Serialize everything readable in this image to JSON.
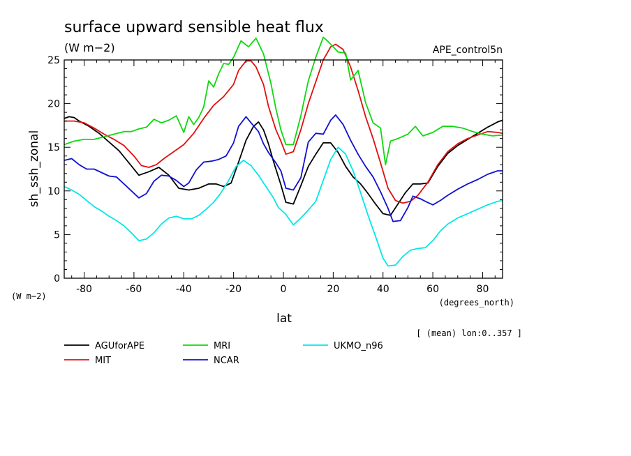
{
  "chart_data": {
    "type": "line",
    "title": "surface upward sensible heat flux",
    "subtitle": "(W m−2)",
    "experiment": "APE_control5n",
    "xlabel": "lat",
    "x_units": "(degrees_north)",
    "ylabel": "sh_ssh_zonal",
    "y_units": "(W m−2)",
    "note": "[ (mean) lon:0..357 ]",
    "xlim": [
      -88,
      88
    ],
    "ylim": [
      0,
      25
    ],
    "x_ticks": [
      "-80",
      "-60",
      "-40",
      "-20",
      "0",
      "20",
      "40",
      "60",
      "80"
    ],
    "y_ticks": [
      "0",
      "5",
      "10",
      "15",
      "20",
      "25"
    ],
    "grid": false,
    "legend_position": "bottom",
    "series": [
      {
        "name": "AGUforAPE",
        "color": "#000000",
        "points": [
          [
            -88,
            18.3
          ],
          [
            -86,
            18.5
          ],
          [
            -84,
            18.4
          ],
          [
            -82,
            18
          ],
          [
            -78,
            17.4
          ],
          [
            -74,
            16.6
          ],
          [
            -70,
            15.6
          ],
          [
            -66,
            14.6
          ],
          [
            -62,
            13.2
          ],
          [
            -58,
            11.8
          ],
          [
            -54,
            12.2
          ],
          [
            -50,
            12.7
          ],
          [
            -46,
            11.8
          ],
          [
            -42,
            10.3
          ],
          [
            -38,
            10.1
          ],
          [
            -34,
            10.3
          ],
          [
            -30,
            10.8
          ],
          [
            -27,
            10.8
          ],
          [
            -24,
            10.5
          ],
          [
            -21,
            10.9
          ],
          [
            -18,
            13.3
          ],
          [
            -15,
            15.8
          ],
          [
            -12,
            17.4
          ],
          [
            -10,
            17.9
          ],
          [
            -8,
            17
          ],
          [
            -6,
            15.4
          ],
          [
            -4,
            13.4
          ],
          [
            -1,
            10.7
          ],
          [
            1,
            8.7
          ],
          [
            4,
            8.5
          ],
          [
            7,
            10.6
          ],
          [
            10,
            12.8
          ],
          [
            13,
            14.2
          ],
          [
            16,
            15.5
          ],
          [
            19,
            15.5
          ],
          [
            22,
            14.4
          ],
          [
            25,
            12.8
          ],
          [
            28,
            11.6
          ],
          [
            31,
            10.8
          ],
          [
            34,
            9.7
          ],
          [
            37,
            8.5
          ],
          [
            40,
            7.4
          ],
          [
            43,
            7.2
          ],
          [
            46,
            8.5
          ],
          [
            49,
            9.8
          ],
          [
            52,
            10.8
          ],
          [
            55,
            10.8
          ],
          [
            58,
            10.9
          ],
          [
            62,
            12.8
          ],
          [
            66,
            14.3
          ],
          [
            70,
            15.2
          ],
          [
            74,
            15.9
          ],
          [
            78,
            16.6
          ],
          [
            82,
            17.3
          ],
          [
            86,
            17.9
          ],
          [
            88,
            18.1
          ]
        ]
      },
      {
        "name": "MIT",
        "color": "#e01010",
        "points": [
          [
            -88,
            18
          ],
          [
            -84,
            18
          ],
          [
            -80,
            17.8
          ],
          [
            -76,
            17.2
          ],
          [
            -72,
            16.5
          ],
          [
            -68,
            15.9
          ],
          [
            -64,
            15.2
          ],
          [
            -60,
            14
          ],
          [
            -57,
            12.9
          ],
          [
            -54,
            12.7
          ],
          [
            -51,
            13
          ],
          [
            -48,
            13.7
          ],
          [
            -44,
            14.5
          ],
          [
            -40,
            15.3
          ],
          [
            -36,
            16.6
          ],
          [
            -32,
            18.3
          ],
          [
            -28,
            19.8
          ],
          [
            -24,
            20.8
          ],
          [
            -20,
            22.2
          ],
          [
            -18,
            23.8
          ],
          [
            -15,
            24.9
          ],
          [
            -13,
            24.9
          ],
          [
            -11,
            24.2
          ],
          [
            -8,
            22.2
          ],
          [
            -6,
            19.7
          ],
          [
            -3,
            17
          ],
          [
            -1,
            15.7
          ],
          [
            1,
            14.2
          ],
          [
            4,
            14.5
          ],
          [
            7,
            17
          ],
          [
            10,
            20
          ],
          [
            13,
            22.5
          ],
          [
            16,
            25
          ],
          [
            19,
            26.5
          ],
          [
            21,
            26.8
          ],
          [
            24,
            26.2
          ],
          [
            27,
            24.2
          ],
          [
            30,
            21.5
          ],
          [
            33,
            18.5
          ],
          [
            36,
            16
          ],
          [
            39,
            13.2
          ],
          [
            42,
            10.3
          ],
          [
            45,
            8.9
          ],
          [
            48,
            8.6
          ],
          [
            51,
            8.8
          ],
          [
            54,
            9.5
          ],
          [
            58,
            11
          ],
          [
            62,
            13
          ],
          [
            66,
            14.5
          ],
          [
            70,
            15.4
          ],
          [
            74,
            16
          ],
          [
            78,
            16.4
          ],
          [
            82,
            16.8
          ],
          [
            86,
            16.7
          ],
          [
            88,
            16.6
          ]
        ]
      },
      {
        "name": "MRI",
        "color": "#10d810",
        "points": [
          [
            -88,
            15.3
          ],
          [
            -84,
            15.7
          ],
          [
            -80,
            15.9
          ],
          [
            -76,
            15.9
          ],
          [
            -72,
            16.2
          ],
          [
            -68,
            16.5
          ],
          [
            -64,
            16.8
          ],
          [
            -61,
            16.8
          ],
          [
            -58,
            17.1
          ],
          [
            -55,
            17.3
          ],
          [
            -52,
            18.2
          ],
          [
            -49,
            17.8
          ],
          [
            -46,
            18.1
          ],
          [
            -43,
            18.6
          ],
          [
            -40,
            16.7
          ],
          [
            -38,
            18.5
          ],
          [
            -36,
            17.6
          ],
          [
            -34,
            18.4
          ],
          [
            -32,
            19.6
          ],
          [
            -30,
            22.6
          ],
          [
            -28,
            21.9
          ],
          [
            -26,
            23.4
          ],
          [
            -24,
            24.6
          ],
          [
            -22,
            24.5
          ],
          [
            -20,
            25.3
          ],
          [
            -17,
            27.2
          ],
          [
            -14,
            26.5
          ],
          [
            -11,
            27.5
          ],
          [
            -8,
            25.7
          ],
          [
            -5,
            22.3
          ],
          [
            -3,
            19.4
          ],
          [
            -1,
            17
          ],
          [
            1,
            15.3
          ],
          [
            4,
            15.3
          ],
          [
            7,
            18.6
          ],
          [
            10,
            22.6
          ],
          [
            13,
            25.3
          ],
          [
            16,
            27.6
          ],
          [
            18,
            27.1
          ],
          [
            20,
            26.5
          ],
          [
            22,
            25.9
          ],
          [
            25,
            25.8
          ],
          [
            27,
            22.7
          ],
          [
            30,
            23.8
          ],
          [
            33,
            20.1
          ],
          [
            36,
            17.8
          ],
          [
            39,
            17.2
          ],
          [
            41,
            13.0
          ],
          [
            43,
            15.7
          ],
          [
            46,
            16
          ],
          [
            50,
            16.5
          ],
          [
            53,
            17.4
          ],
          [
            56,
            16.3
          ],
          [
            60,
            16.7
          ],
          [
            64,
            17.4
          ],
          [
            68,
            17.4
          ],
          [
            72,
            17.2
          ],
          [
            76,
            16.8
          ],
          [
            80,
            16.5
          ],
          [
            84,
            16.3
          ],
          [
            88,
            16.4
          ]
        ]
      },
      {
        "name": "NCAR",
        "color": "#1010d0",
        "points": [
          [
            -88,
            13.5
          ],
          [
            -85,
            13.7
          ],
          [
            -82,
            13
          ],
          [
            -79,
            12.5
          ],
          [
            -76,
            12.5
          ],
          [
            -73,
            12.1
          ],
          [
            -70,
            11.7
          ],
          [
            -67,
            11.6
          ],
          [
            -64,
            10.8
          ],
          [
            -61,
            10
          ],
          [
            -58,
            9.2
          ],
          [
            -55,
            9.7
          ],
          [
            -52,
            11.1
          ],
          [
            -49,
            11.8
          ],
          [
            -46,
            11.7
          ],
          [
            -43,
            11.2
          ],
          [
            -40,
            10.5
          ],
          [
            -38,
            10.9
          ],
          [
            -35,
            12.4
          ],
          [
            -32,
            13.3
          ],
          [
            -29,
            13.4
          ],
          [
            -26,
            13.6
          ],
          [
            -23,
            14
          ],
          [
            -20,
            15.5
          ],
          [
            -18,
            17.4
          ],
          [
            -15,
            18.5
          ],
          [
            -13,
            17.8
          ],
          [
            -10,
            16.8
          ],
          [
            -8,
            15.4
          ],
          [
            -6,
            14.4
          ],
          [
            -3,
            13.2
          ],
          [
            -1,
            12.3
          ],
          [
            1,
            10.3
          ],
          [
            4,
            10.1
          ],
          [
            7,
            11.5
          ],
          [
            10,
            15.6
          ],
          [
            13,
            16.6
          ],
          [
            16,
            16.5
          ],
          [
            19,
            18.1
          ],
          [
            21,
            18.7
          ],
          [
            24,
            17.6
          ],
          [
            27,
            15.8
          ],
          [
            30,
            14.2
          ],
          [
            33,
            12.8
          ],
          [
            36,
            11.6
          ],
          [
            39,
            9.9
          ],
          [
            42,
            8.0
          ],
          [
            44,
            6.5
          ],
          [
            47,
            6.6
          ],
          [
            50,
            8.1
          ],
          [
            52,
            9.4
          ],
          [
            55,
            9.1
          ],
          [
            57,
            8.8
          ],
          [
            60,
            8.4
          ],
          [
            63,
            8.9
          ],
          [
            66,
            9.5
          ],
          [
            70,
            10.2
          ],
          [
            74,
            10.8
          ],
          [
            78,
            11.3
          ],
          [
            82,
            11.9
          ],
          [
            86,
            12.3
          ],
          [
            88,
            12.3
          ]
        ]
      },
      {
        "name": "UKMO_n96",
        "color": "#00e8e8",
        "points": [
          [
            -88,
            10.5
          ],
          [
            -85,
            10.1
          ],
          [
            -82,
            9.6
          ],
          [
            -79,
            8.9
          ],
          [
            -76,
            8.2
          ],
          [
            -73,
            7.7
          ],
          [
            -70,
            7.1
          ],
          [
            -67,
            6.6
          ],
          [
            -64,
            6
          ],
          [
            -61,
            5.2
          ],
          [
            -58,
            4.3
          ],
          [
            -55,
            4.5
          ],
          [
            -52,
            5.2
          ],
          [
            -49,
            6.2
          ],
          [
            -46,
            6.9
          ],
          [
            -43,
            7.1
          ],
          [
            -40,
            6.8
          ],
          [
            -37,
            6.8
          ],
          [
            -34,
            7.2
          ],
          [
            -31,
            7.9
          ],
          [
            -28,
            8.7
          ],
          [
            -25,
            9.8
          ],
          [
            -22,
            11.2
          ],
          [
            -19,
            12.8
          ],
          [
            -16,
            13.5
          ],
          [
            -13,
            12.9
          ],
          [
            -10,
            11.8
          ],
          [
            -7,
            10.5
          ],
          [
            -4,
            9.2
          ],
          [
            -2,
            8.1
          ],
          [
            1,
            7.3
          ],
          [
            4,
            6.1
          ],
          [
            7,
            6.9
          ],
          [
            10,
            7.8
          ],
          [
            13,
            8.8
          ],
          [
            16,
            11.2
          ],
          [
            19,
            13.6
          ],
          [
            22,
            15
          ],
          [
            25,
            14.2
          ],
          [
            28,
            12.3
          ],
          [
            31,
            9.8
          ],
          [
            34,
            7.2
          ],
          [
            37,
            4.8
          ],
          [
            40,
            2.3
          ],
          [
            42,
            1.4
          ],
          [
            45,
            1.5
          ],
          [
            48,
            2.5
          ],
          [
            51,
            3.2
          ],
          [
            54,
            3.4
          ],
          [
            57,
            3.5
          ],
          [
            60,
            4.3
          ],
          [
            63,
            5.4
          ],
          [
            66,
            6.2
          ],
          [
            70,
            6.9
          ],
          [
            74,
            7.4
          ],
          [
            78,
            7.9
          ],
          [
            82,
            8.4
          ],
          [
            86,
            8.8
          ],
          [
            88,
            8.9
          ]
        ]
      }
    ]
  }
}
